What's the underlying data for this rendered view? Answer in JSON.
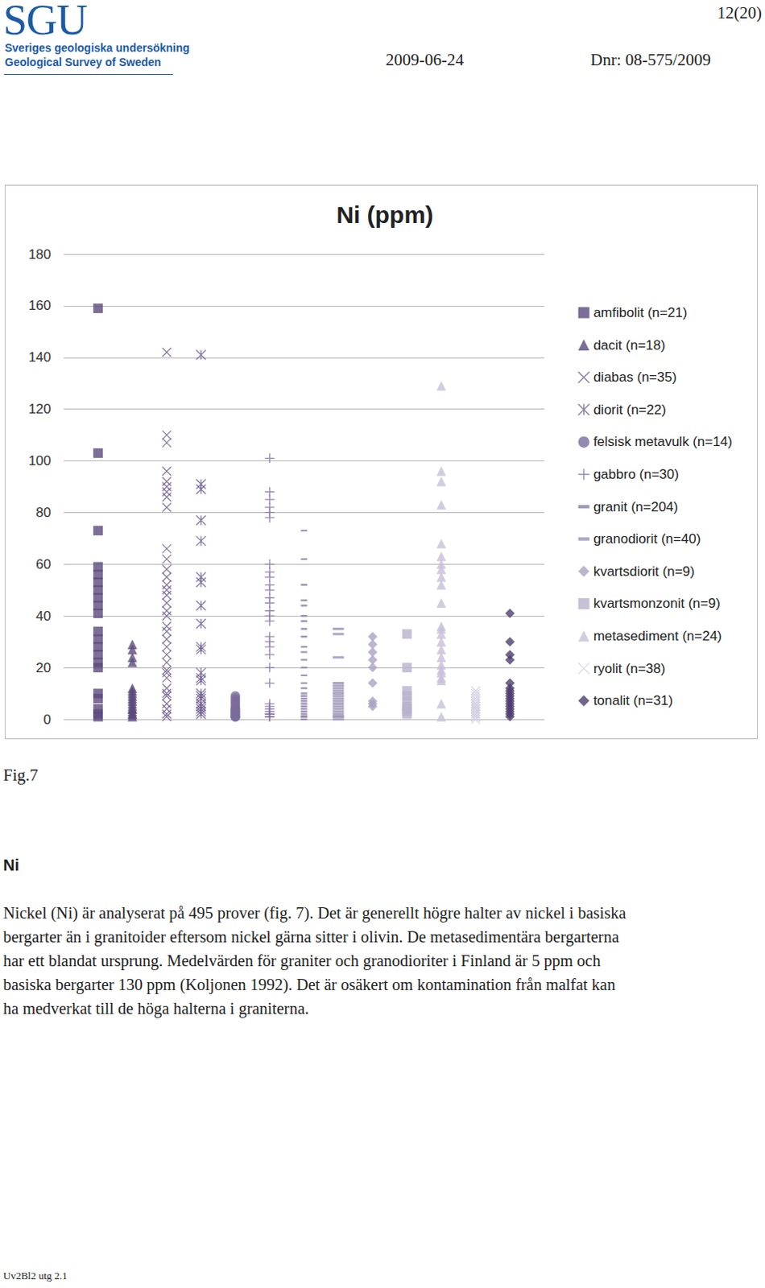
{
  "header": {
    "logo": "SGU",
    "org_sv": "Sveriges geologiska undersökning",
    "org_en": "Geological Survey of Sweden",
    "page": "12(20)",
    "date": "2009-06-24",
    "dnr": "Dnr: 08-575/2009"
  },
  "chart_data": {
    "type": "scatter",
    "title": "Ni (ppm)",
    "ylim": [
      0,
      180
    ],
    "yticks": [
      0,
      20,
      40,
      60,
      80,
      100,
      120,
      140,
      160,
      180
    ],
    "grid": true,
    "legend": "right",
    "tick_labels": "y",
    "series": [
      {
        "name": "amfibolit (n=21)",
        "color": "#5b4a7c",
        "marker": "square",
        "values": [
          159,
          103,
          73,
          59,
          56,
          53,
          50,
          47,
          44,
          41,
          34,
          31,
          28,
          25,
          22,
          20,
          10,
          8,
          4,
          2,
          1
        ]
      },
      {
        "name": "dacit (n=18)",
        "color": "#5b4a7c",
        "marker": "triangle",
        "values": [
          29,
          27,
          24,
          22,
          12,
          11,
          10,
          9,
          8,
          7,
          6,
          5,
          4,
          4,
          3,
          2,
          2,
          1
        ]
      },
      {
        "name": "diabas (n=35)",
        "color": "#6a5a8c",
        "marker": "x",
        "values": [
          142,
          110,
          107,
          96,
          92,
          90,
          88,
          86,
          82,
          66,
          62,
          58,
          55,
          52,
          50,
          48,
          45,
          42,
          40,
          36,
          34,
          31,
          28,
          25,
          22,
          19,
          18,
          16,
          12,
          10,
          9,
          6,
          4,
          2,
          1
        ]
      },
      {
        "name": "diorit (n=22)",
        "color": "#6a5a8c",
        "marker": "asterisk",
        "values": [
          141,
          91,
          89,
          77,
          69,
          55,
          53,
          44,
          37,
          28,
          27,
          18,
          16,
          15,
          10,
          9,
          8,
          6,
          5,
          4,
          3,
          2
        ]
      },
      {
        "name": "felsisk metavulk (n=14)",
        "color": "#7a6b9c",
        "marker": "circle",
        "values": [
          9,
          8,
          7,
          6,
          5,
          4,
          4,
          3,
          3,
          2,
          2,
          1,
          1,
          1
        ]
      },
      {
        "name": "gabbro (n=30)",
        "color": "#7a6b9c",
        "marker": "plus",
        "values": [
          101,
          88,
          85,
          82,
          80,
          78,
          60,
          57,
          55,
          52,
          50,
          47,
          45,
          42,
          40,
          38,
          32,
          30,
          28,
          25,
          20,
          14,
          6,
          5,
          4,
          3,
          2,
          2,
          1,
          1
        ]
      },
      {
        "name": "granit (n=204)",
        "color": "#8a7fa8",
        "marker": "dash",
        "values": [
          73,
          62,
          52,
          46,
          44,
          40,
          38,
          35,
          32,
          28,
          26,
          23,
          20,
          17,
          14,
          12,
          10,
          9,
          8,
          7,
          6,
          5,
          4,
          3,
          2,
          1,
          1,
          0
        ]
      },
      {
        "name": "granodiorit (n=40)",
        "color": "#9a91b6",
        "marker": "long_dash",
        "values": [
          35,
          33,
          24,
          14,
          13,
          12,
          11,
          10,
          9,
          8,
          7,
          6,
          5,
          4,
          3,
          2,
          1,
          1,
          0
        ]
      },
      {
        "name": "kvartsdiorit (n=9)",
        "color": "#aaa3c3",
        "marker": "diamond",
        "values": [
          32,
          29,
          26,
          23,
          20,
          14,
          7,
          6,
          5
        ]
      },
      {
        "name": "kvartsmonzonit (n=9)",
        "color": "#b8b2cd",
        "marker": "square",
        "values": [
          33,
          20,
          11,
          9,
          7,
          5,
          4,
          3,
          2
        ]
      },
      {
        "name": "metasediment (n=24)",
        "color": "#c5c0d7",
        "marker": "triangle",
        "values": [
          129,
          96,
          92,
          83,
          68,
          63,
          60,
          58,
          55,
          52,
          45,
          36,
          35,
          33,
          30,
          27,
          24,
          21,
          19,
          18,
          16,
          15,
          6,
          1
        ]
      },
      {
        "name": "ryolit (n=38)",
        "color": "#d2cee1",
        "marker": "x",
        "values": [
          11,
          10,
          9,
          8,
          7,
          6,
          6,
          5,
          5,
          4,
          4,
          3,
          3,
          2,
          2,
          1,
          1,
          0
        ]
      },
      {
        "name": "tonalit (n=31)",
        "color": "#4e3e6e",
        "marker": "diamond",
        "values": [
          41,
          30,
          25,
          23,
          14,
          12,
          11,
          10,
          9,
          8,
          7,
          6,
          5,
          4,
          3,
          2,
          1
        ]
      }
    ]
  },
  "caption": "Fig.7",
  "section": {
    "heading": "Ni",
    "lines": [
      "Nickel (Ni) är analyserat på 495 prover (fig. 7). Det är generellt högre halter av nickel i basiska",
      "bergarter än i granitoider eftersom nickel gärna sitter i olivin. De metasedimentära bergarterna",
      "har ett blandat ursprung. Medelvärden för graniter och granodioriter i Finland är 5 ppm och",
      "basiska bergarter 130 ppm (Koljonen 1992). Det är osäkert om kontamination från malfat kan",
      "ha medverkat till de höga halterna i graniterna."
    ]
  },
  "footer": "Uv2Bl2 utg 2.1"
}
